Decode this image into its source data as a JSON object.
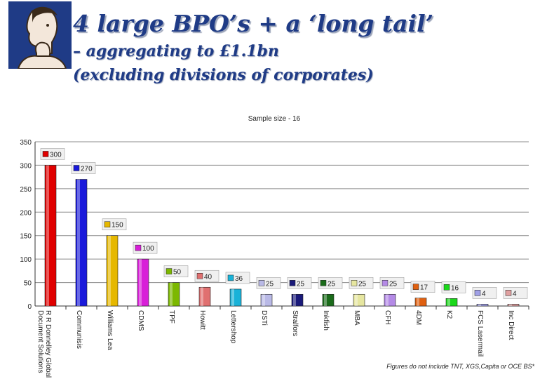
{
  "slide": {
    "title": "4 large BPO’s + a ‘long tail’",
    "subtitle_line1": "– aggregating to £1.1bn",
    "subtitle_line2": "(excluding divisions of corporates)",
    "footnote": "Figures do not include TNT, XGS,Capita or OCE BS*",
    "logo_icon": "thinking-man-icon"
  },
  "chart_data": {
    "type": "bar",
    "title": "Sample size - 16",
    "categories": [
      "R R Donnelley Global Document Solutions",
      "Communisis",
      "Williams Lea",
      "CDMS",
      "TPF",
      "Howitt",
      "Lettershop",
      "DSTi",
      "Stralfors",
      "Inkfish",
      "MBA",
      "CFH",
      "4DM",
      "K2",
      "FCS Lasermail",
      "Inc Direct"
    ],
    "values": [
      300,
      270,
      150,
      100,
      50,
      40,
      36,
      25,
      25,
      25,
      25,
      25,
      17,
      16,
      4,
      4
    ],
    "colors": [
      "#e00000",
      "#1a1adb",
      "#e6b800",
      "#d81fd8",
      "#7cb800",
      "#e07070",
      "#19b2d8",
      "#b9b9e6",
      "#1a1a7a",
      "#1a6b1a",
      "#e6e6a0",
      "#b48ae6",
      "#e06010",
      "#1ad81a",
      "#a0a0e6",
      "#e0a0a0"
    ],
    "ylim": [
      0,
      350
    ],
    "yticks": [
      0,
      50,
      100,
      150,
      200,
      250,
      300,
      350
    ],
    "grid": true,
    "legend": "none"
  }
}
